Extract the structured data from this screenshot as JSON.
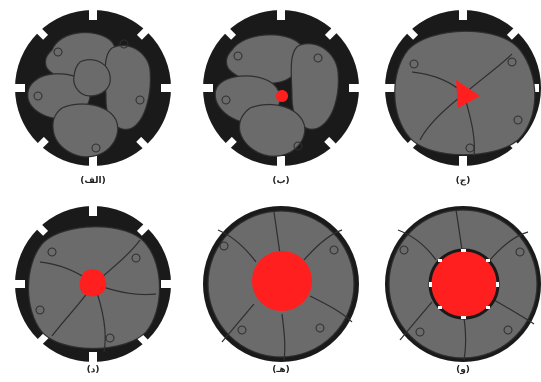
{
  "panels": [
    {
      "id": "alef",
      "caption": "(الف)",
      "core": "none"
    },
    {
      "id": "be",
      "caption": "(ب)",
      "core": "small-dot"
    },
    {
      "id": "jim",
      "caption": "(ج)",
      "core": "triangle"
    },
    {
      "id": "dal",
      "caption": "(د)",
      "core": "blob"
    },
    {
      "id": "he",
      "caption": "(هـ)",
      "core": "large-circle"
    },
    {
      "id": "vav",
      "caption": "(و)",
      "core": "large-circle-outlined"
    }
  ],
  "colors": {
    "ring": "#1a1a1a",
    "grain": "#6b6b6b",
    "grain_dark": "#5a5a5a",
    "edge": "#2e2e2e",
    "core": "#ff1f1f",
    "background": "#ffffff"
  }
}
